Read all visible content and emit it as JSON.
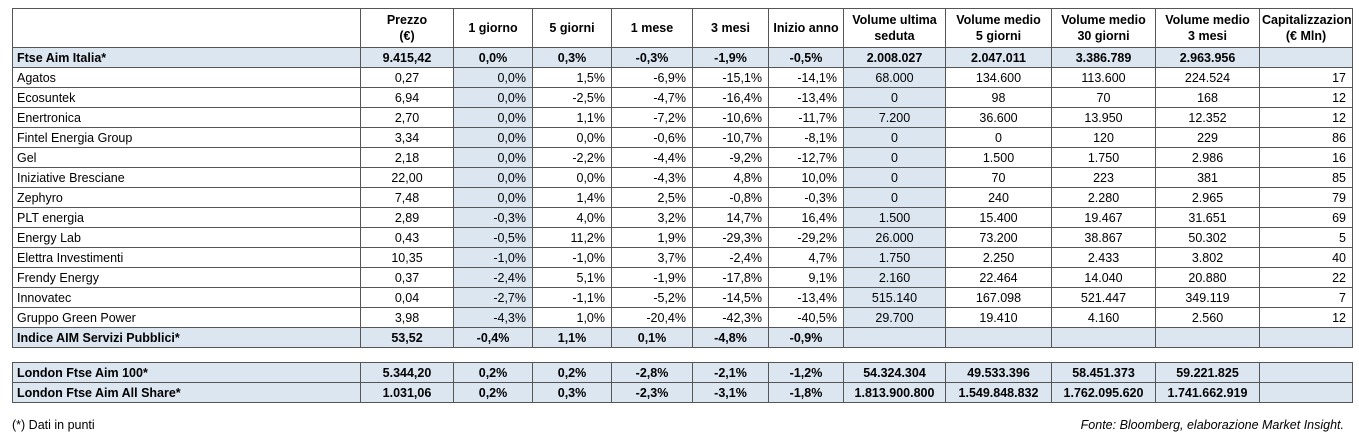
{
  "headers": [
    "",
    "Prezzo (€)",
    "1 giorno",
    "5 giorni",
    "1 mese",
    "3 mesi",
    "Inizio anno",
    "Volume ultima seduta",
    "Volume medio 5 giorni",
    "Volume medio 30 giorni",
    "Volume medio 3 mesi",
    "Capitalizzazione (€ Mln)"
  ],
  "index_top": [
    "Ftse Aim Italia*",
    "9.415,42",
    "0,0%",
    "0,3%",
    "-0,3%",
    "-1,9%",
    "-0,5%",
    "2.008.027",
    "2.047.011",
    "3.386.789",
    "2.963.956",
    ""
  ],
  "rows": [
    [
      "Agatos",
      "0,27",
      "0,0%",
      "1,5%",
      "-6,9%",
      "-15,1%",
      "-14,1%",
      "68.000",
      "134.600",
      "113.600",
      "224.524",
      "17"
    ],
    [
      "Ecosuntek",
      "6,94",
      "0,0%",
      "-2,5%",
      "-4,7%",
      "-16,4%",
      "-13,4%",
      "0",
      "98",
      "70",
      "168",
      "12"
    ],
    [
      "Enertronica",
      "2,70",
      "0,0%",
      "1,1%",
      "-7,2%",
      "-10,6%",
      "-11,7%",
      "7.200",
      "36.600",
      "13.950",
      "12.352",
      "12"
    ],
    [
      "Fintel Energia Group",
      "3,34",
      "0,0%",
      "0,0%",
      "-0,6%",
      "-10,7%",
      "-8,1%",
      "0",
      "0",
      "120",
      "229",
      "86"
    ],
    [
      "Gel",
      "2,18",
      "0,0%",
      "-2,2%",
      "-4,4%",
      "-9,2%",
      "-12,7%",
      "0",
      "1.500",
      "1.750",
      "2.986",
      "16"
    ],
    [
      "Iniziative Bresciane",
      "22,00",
      "0,0%",
      "0,0%",
      "-4,3%",
      "4,8%",
      "10,0%",
      "0",
      "70",
      "223",
      "381",
      "85"
    ],
    [
      "Zephyro",
      "7,48",
      "0,0%",
      "1,4%",
      "2,5%",
      "-0,8%",
      "-0,3%",
      "0",
      "240",
      "2.280",
      "2.965",
      "79"
    ],
    [
      "PLT energia",
      "2,89",
      "-0,3%",
      "4,0%",
      "3,2%",
      "14,7%",
      "16,4%",
      "1.500",
      "15.400",
      "19.467",
      "31.651",
      "69"
    ],
    [
      "Energy Lab",
      "0,43",
      "-0,5%",
      "11,2%",
      "1,9%",
      "-29,3%",
      "-29,2%",
      "26.000",
      "73.200",
      "38.867",
      "50.302",
      "5"
    ],
    [
      "Elettra Investimenti",
      "10,35",
      "-1,0%",
      "-1,0%",
      "3,7%",
      "-2,4%",
      "4,7%",
      "1.750",
      "2.250",
      "2.433",
      "3.802",
      "40"
    ],
    [
      "Frendy Energy",
      "0,37",
      "-2,4%",
      "5,1%",
      "-1,9%",
      "-17,8%",
      "9,1%",
      "2.160",
      "22.464",
      "14.040",
      "20.880",
      "22"
    ],
    [
      "Innovatec",
      "0,04",
      "-2,7%",
      "-1,1%",
      "-5,2%",
      "-14,5%",
      "-13,4%",
      "515.140",
      "167.098",
      "521.447",
      "349.119",
      "7"
    ],
    [
      "Gruppo Green Power",
      "3,98",
      "-4,3%",
      "1,0%",
      "-20,4%",
      "-42,3%",
      "-40,5%",
      "29.700",
      "19.410",
      "4.160",
      "2.560",
      "12"
    ]
  ],
  "index_sector": [
    "Indice AIM Servizi Pubblici*",
    "53,52",
    "-0,4%",
    "1,1%",
    "0,1%",
    "-4,8%",
    "-0,9%",
    "",
    "",
    "",
    "",
    ""
  ],
  "london": [
    [
      "London Ftse Aim 100*",
      "5.344,20",
      "0,2%",
      "0,2%",
      "-2,8%",
      "-2,1%",
      "-1,2%",
      "54.324.304",
      "49.533.396",
      "58.451.373",
      "59.221.825",
      ""
    ],
    [
      "London Ftse Aim All Share*",
      "1.031,06",
      "0,2%",
      "0,3%",
      "-2,3%",
      "-3,1%",
      "-1,8%",
      "1.813.900.800",
      "1.549.848.832",
      "1.762.095.620",
      "1.741.662.919",
      ""
    ]
  ],
  "footnote": "(*) Dati in punti",
  "source": "Fonte: Bloomberg, elaborazione Market Insight."
}
